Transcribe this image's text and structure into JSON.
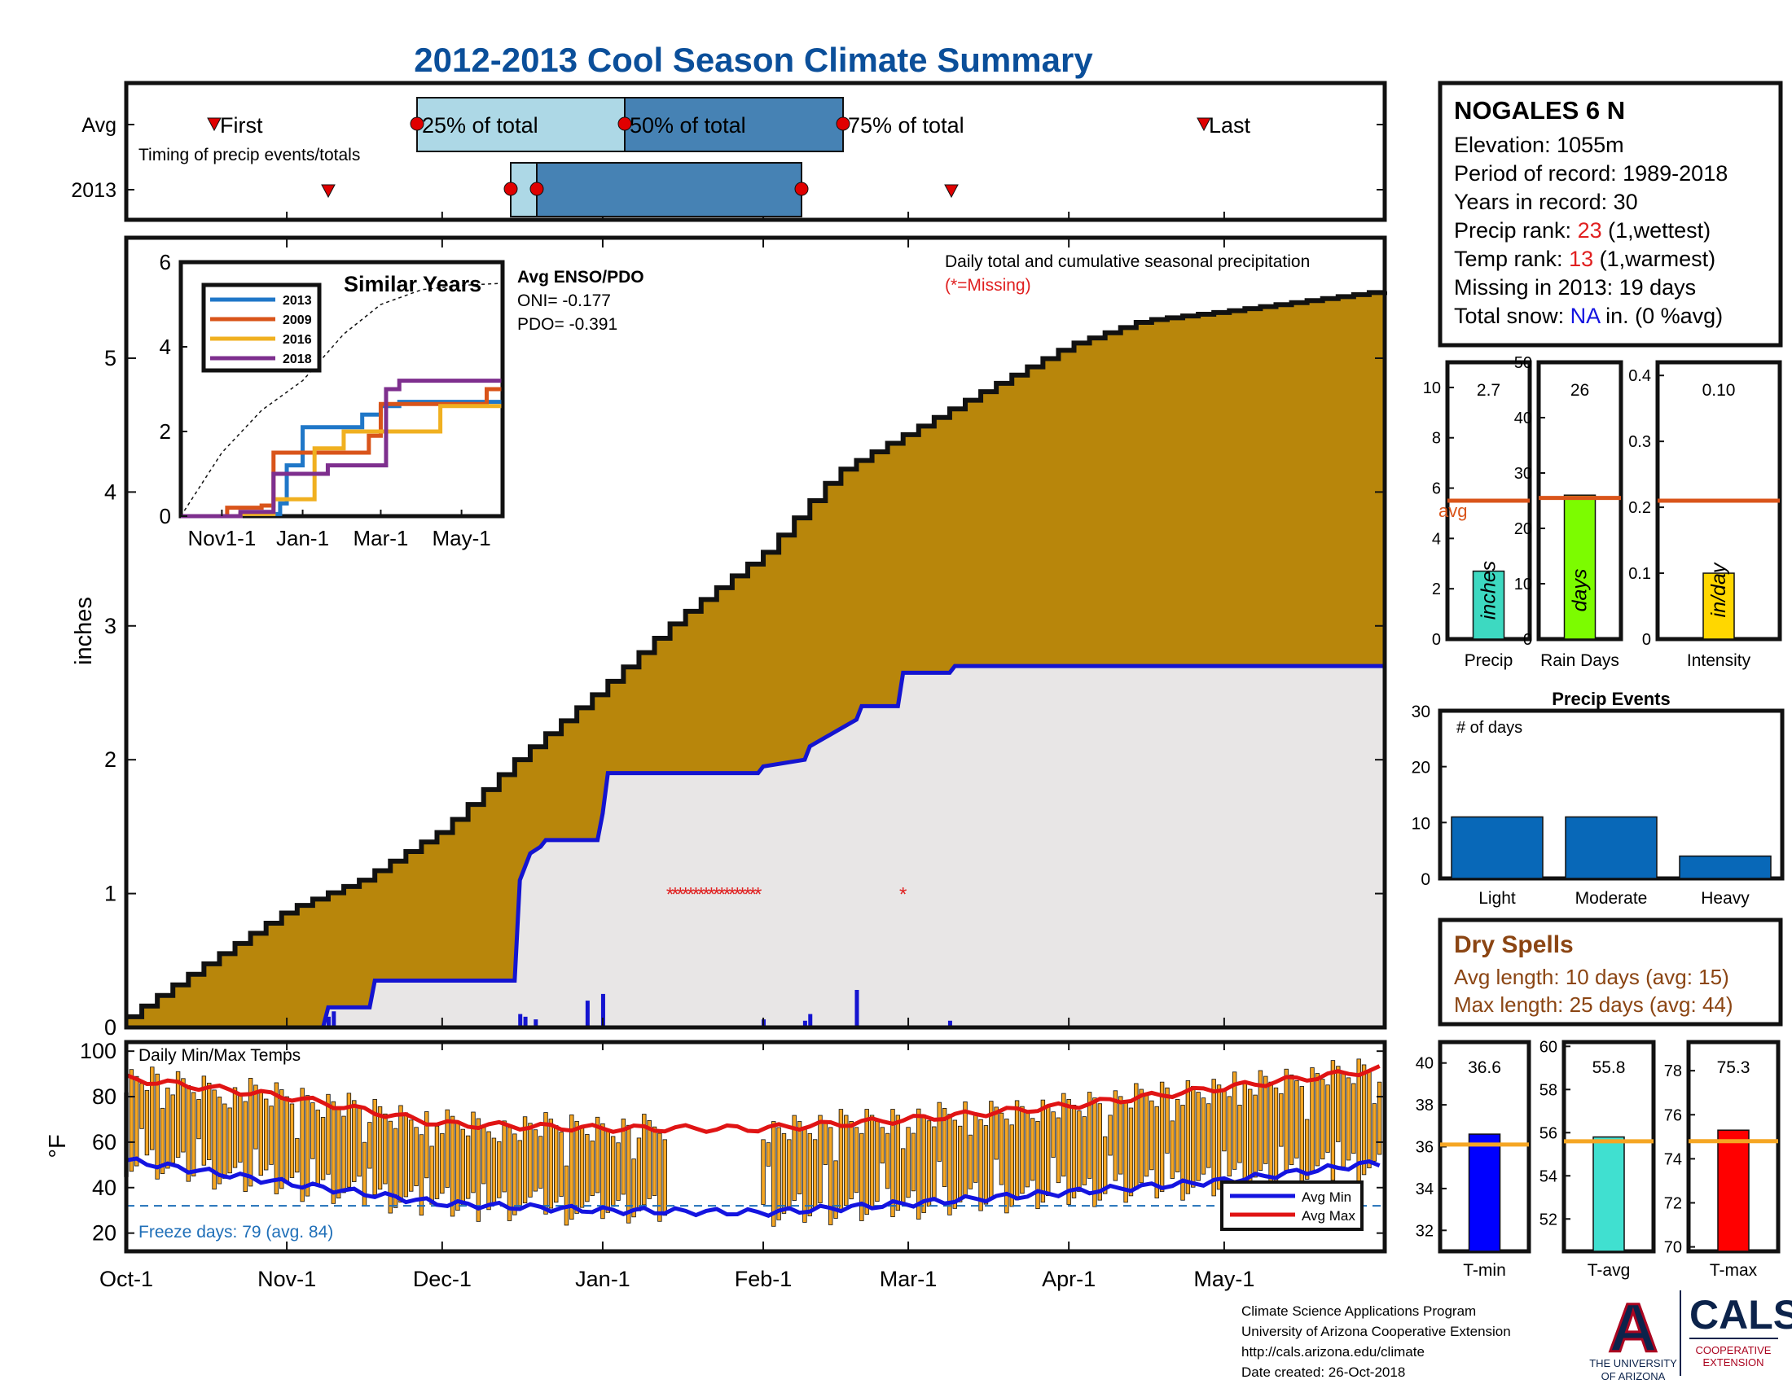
{
  "title": "2012-2013 Cool Season Climate Summary",
  "colors": {
    "title": "#0b4f9a",
    "cumulative_avg_fill": "#b8860b",
    "cumulative_2013_fill": "#e8e6e6",
    "line_2013": "#1414d0",
    "missing": "#e02020",
    "avg_line": "#d9541a",
    "dry_spell_text": "#8b4513",
    "temp_bar": "#f5a623",
    "avg_min_line": "#1414e0",
    "avg_max_line": "#e01414",
    "freeze_text": "#1f6fb8",
    "event_bar": "#0868b8"
  },
  "timing": {
    "row_labels": [
      "Avg",
      "2013"
    ],
    "note": "Timing of precip events/totals",
    "labels": {
      "first": "First",
      "q25": "25% of total",
      "q50": "50% of total",
      "q75": "75% of total",
      "last": "Last"
    },
    "avg_dates": {
      "first": "Oct-19",
      "q25": "Dec-04",
      "q50": "Jan-11",
      "q75": "Feb-19",
      "last": "May-10"
    },
    "y2013_dates": {
      "first": "Nov-09",
      "q25": "Dec-15",
      "q50": "Dec-20",
      "q75": "Feb-12",
      "last": "Mar-09"
    }
  },
  "station": {
    "name": "NOGALES 6 N",
    "elevation": "Elevation: 1055m",
    "period": "Period of record: 1989-2018",
    "years": "Years in record: 30",
    "precip_rank_prefix": "Precip rank: ",
    "precip_rank_value": "23",
    "precip_rank_suffix": " (1,wettest)",
    "temp_rank_prefix": "Temp rank: ",
    "temp_rank_value": "13",
    "temp_rank_suffix": " (1,warmest)",
    "missing": "Missing in 2013: 19 days",
    "snow_prefix": "Total snow: ",
    "snow_value": "NA",
    "snow_suffix": " in. (0 %avg)"
  },
  "main_plot": {
    "note": "Daily total and cumulative seasonal precipitation",
    "missing_note": "(*=Missing)",
    "ylabel": "inches",
    "yticks": [
      "0",
      "1",
      "2",
      "3",
      "4",
      "5"
    ],
    "x_ticks": [
      "Oct-1",
      "Nov-1",
      "Dec-1",
      "Jan-1",
      "Feb-1",
      "Mar-1",
      "Apr-1",
      "May-1"
    ]
  },
  "enso": {
    "heading": "Avg ENSO/PDO",
    "oni": "ONI= -0.177",
    "pdo": "PDO= -0.391"
  },
  "similar_years": {
    "title": "Similar Years",
    "yticks": [
      "0",
      "2",
      "4",
      "6"
    ],
    "xticks": [
      "Nov1-1",
      "Jan-1",
      "Mar-1",
      "May-1"
    ],
    "legend": [
      {
        "name": "2013",
        "color": "#1f77c8"
      },
      {
        "name": "2009",
        "color": "#d9541a"
      },
      {
        "name": "2016",
        "color": "#f0b020"
      },
      {
        "name": "2018",
        "color": "#7e2f8e"
      }
    ]
  },
  "bars": {
    "precip": {
      "value": "2.7",
      "unit": "inches",
      "label": "Precip",
      "avg_label": "avg",
      "color": "#3dd9c1",
      "yticks": [
        "0",
        "2",
        "4",
        "6",
        "8",
        "10"
      ]
    },
    "rain_days": {
      "value": "26",
      "unit": "days",
      "label": "Rain Days",
      "color": "#7cfc00",
      "yticks": [
        "0",
        "10",
        "20",
        "30",
        "40",
        "50"
      ]
    },
    "intensity": {
      "value": "0.10",
      "unit": "in/day",
      "label": "Intensity",
      "color": "#ffd700",
      "yticks": [
        "0",
        "0.1",
        "0.2",
        "0.3",
        "0.4"
      ]
    }
  },
  "precip_events": {
    "title": "Precip Events",
    "ylabel": "# of days",
    "yticks": [
      "0",
      "10",
      "20",
      "30"
    ],
    "categories": [
      "Light",
      "Moderate",
      "Heavy"
    ]
  },
  "dry_spells": {
    "title": "Dry Spells",
    "avg": "Avg length: 10 days (avg: 15)",
    "max": "Max length: 25 days (avg: 44)"
  },
  "temps": {
    "title": "Daily Min/Max Temps",
    "ylabel": "°F",
    "yticks": [
      "20",
      "40",
      "60",
      "80",
      "100"
    ],
    "freeze": "Freeze days: 79 (avg. 84)",
    "legend": [
      "Avg Min",
      "Avg Max"
    ]
  },
  "temp_bars": {
    "tmin": {
      "value": "36.6",
      "label": "T-min",
      "color": "#0000ff",
      "yticks": [
        "32",
        "34",
        "36",
        "38",
        "40"
      ]
    },
    "tavg": {
      "value": "55.8",
      "label": "T-avg",
      "color": "#40e0d0",
      "yticks": [
        "52",
        "54",
        "56",
        "58",
        "60"
      ]
    },
    "tmax": {
      "value": "75.3",
      "label": "T-max",
      "color": "#ff0000",
      "yticks": [
        "70",
        "72",
        "74",
        "76",
        "78"
      ]
    }
  },
  "footer": {
    "line1": "Climate Science Applications Program",
    "line2": "University of Arizona Cooperative Extension",
    "line3": "http://cals.arizona.edu/climate",
    "line4": " Date created: 26-Oct-2018"
  },
  "logos": {
    "ua_letter": "A",
    "ua_line1": "THE UNIVERSITY",
    "ua_line2": "OF ARIZONA",
    "cals": "CALS",
    "cals_line1": "COOPERATIVE",
    "cals_line2": "EXTENSION"
  },
  "chart_data": [
    {
      "type": "area",
      "id": "cumulative_precip",
      "title": "Daily total and cumulative seasonal precipitation",
      "ylabel": "inches",
      "xlabel": "",
      "x_range": [
        "Oct-1",
        "May-31"
      ],
      "ylim": [
        0,
        5.9
      ],
      "grid": false,
      "series": [
        {
          "name": "",
          "x": [
            "Oct-1",
            "Oct-15",
            "Nov-1",
            "Nov-15",
            "Dec-1",
            "Dec-15",
            "Jan-1",
            "Jan-15",
            "Feb-1",
            "Feb-15",
            "Mar-1",
            "Mar-15",
            "Apr-1",
            "Apr-15",
            "May-1",
            "May-15",
            "May-31"
          ],
          "values": [
            0.08,
            0.45,
            0.88,
            1.1,
            1.48,
            2.0,
            2.55,
            3.05,
            3.55,
            4.15,
            4.45,
            4.75,
            5.1,
            5.28,
            5.35,
            5.42,
            5.5
          ]
        },
        {
          "name": "",
          "x": [
            "Oct-1",
            "Nov-8",
            "Nov-9",
            "Nov-17",
            "Nov-18",
            "Dec-15",
            "Dec-16",
            "Dec-17",
            "Dec-18",
            "Dec-20",
            "Dec-21",
            "Dec-31",
            "Jan-1",
            "Jan-2",
            "Jan-31",
            "Feb-1",
            "Feb-9",
            "Feb-10",
            "Feb-19",
            "Feb-20",
            "Feb-27",
            "Feb-28",
            "Mar-9",
            "Mar-10",
            "May-31"
          ],
          "values": [
            0,
            0,
            0.15,
            0.15,
            0.35,
            0.35,
            1.1,
            1.2,
            1.3,
            1.35,
            1.4,
            1.4,
            1.6,
            1.9,
            1.9,
            1.95,
            2.0,
            2.1,
            2.3,
            2.4,
            2.4,
            2.65,
            2.65,
            2.7,
            2.7
          ]
        }
      ],
      "daily_precip": [
        {
          "x": "Nov-9",
          "value": 0.08
        },
        {
          "x": "Nov-10",
          "value": 0.12
        },
        {
          "x": "Dec-16",
          "value": 0.1
        },
        {
          "x": "Dec-17",
          "value": 0.08
        },
        {
          "x": "Dec-19",
          "value": 0.06
        },
        {
          "x": "Dec-29",
          "value": 0.2
        },
        {
          "x": "Jan-1",
          "value": 0.25
        },
        {
          "x": "Feb-1",
          "value": 0.06
        },
        {
          "x": "Feb-9",
          "value": 0.05
        },
        {
          "x": "Feb-10",
          "value": 0.1
        },
        {
          "x": "Feb-19",
          "value": 0.28
        },
        {
          "x": "Mar-9",
          "value": 0.05
        }
      ],
      "missing": {
        "y": 1.0,
        "x": [
          "Jan-14",
          "Jan-15",
          "Jan-16",
          "Jan-17",
          "Jan-18",
          "Jan-19",
          "Jan-20",
          "Jan-21",
          "Jan-22",
          "Jan-23",
          "Jan-24",
          "Jan-25",
          "Jan-26",
          "Jan-27",
          "Jan-28",
          "Jan-29",
          "Jan-30",
          "Jan-31",
          "Feb-28"
        ]
      }
    },
    {
      "type": "line",
      "id": "similar_years",
      "title": "Similar Years",
      "xlabel": "",
      "ylabel": "",
      "ylim": [
        0,
        6
      ],
      "series": [
        {
          "name": "2013",
          "x": [
            "Oct-1",
            "Nov-15",
            "Dec-15",
            "Dec-20",
            "Jan-1",
            "Feb-15",
            "Mar-1",
            "Mar-15",
            "Apr-1",
            "May-31"
          ],
          "values": [
            0,
            0.05,
            0.3,
            1.2,
            2.1,
            2.4,
            2.6,
            2.7,
            2.7,
            2.7
          ]
        },
        {
          "name": "2009",
          "x": [
            "Oct-1",
            "Nov-5",
            "Dec-1",
            "Dec-10",
            "Jan-10",
            "Feb-20",
            "Mar-1",
            "Mar-5",
            "Apr-10",
            "May-20",
            "May-31"
          ],
          "values": [
            0,
            0.2,
            0.25,
            1.5,
            1.5,
            1.9,
            2.65,
            2.65,
            2.65,
            3.0,
            3.0
          ]
        },
        {
          "name": "2016",
          "x": [
            "Oct-1",
            "Nov-15",
            "Dec-10",
            "Dec-20",
            "Jan-10",
            "Feb-1",
            "Mar-10",
            "Apr-15",
            "May-31"
          ],
          "values": [
            0,
            0.05,
            0.4,
            0.4,
            1.6,
            2.0,
            2.0,
            2.6,
            2.6
          ]
        },
        {
          "name": "2018",
          "x": [
            "Oct-1",
            "Nov-15",
            "Dec-1",
            "Dec-10",
            "Jan-20",
            "Feb-25",
            "Mar-5",
            "Mar-15",
            "May-31"
          ],
          "values": [
            0,
            0.1,
            0.1,
            1.0,
            1.2,
            1.2,
            3.0,
            3.2,
            3.2
          ]
        },
        {
          "name": "",
          "x": [
            "Oct-1",
            "Nov-1",
            "Dec-1",
            "Jan-1",
            "Feb-1",
            "Mar-1",
            "Apr-1",
            "May-1",
            "May-31"
          ],
          "values": [
            0,
            1.5,
            2.5,
            3.2,
            4.3,
            5.0,
            5.35,
            5.45,
            5.5
          ]
        }
      ]
    },
    {
      "type": "bar",
      "id": "precip_totals",
      "categories": [
        "Precip",
        "Rain Days",
        "Intensity"
      ],
      "values": [
        2.7,
        26,
        0.1
      ],
      "averages": [
        5.5,
        25.5,
        0.21
      ],
      "ylims": [
        [
          0,
          11
        ],
        [
          0,
          50
        ],
        [
          0,
          0.42
        ]
      ]
    },
    {
      "type": "bar",
      "id": "precip_events",
      "title": "Precip Events",
      "categories": [
        "Light",
        "Moderate",
        "Heavy"
      ],
      "values": [
        11,
        11,
        4
      ],
      "ylabel": "# of days",
      "ylim": [
        0,
        30
      ]
    },
    {
      "type": "bar",
      "id": "daily_temps",
      "title": "Daily Min/Max Temps",
      "ylabel": "°F",
      "ylim": [
        12,
        104
      ],
      "freeze_line": 32,
      "series": [
        {
          "name": "Avg Min",
          "x": [
            "Oct-1",
            "Nov-1",
            "Dec-1",
            "Jan-1",
            "Feb-1",
            "Mar-1",
            "Apr-1",
            "May-1",
            "May-31"
          ],
          "values": [
            52,
            42,
            33,
            30,
            29,
            33,
            38,
            43,
            51
          ]
        },
        {
          "name": "Avg Max",
          "x": [
            "Oct-1",
            "Nov-1",
            "Dec-1",
            "Jan-1",
            "Feb-1",
            "Mar-1",
            "Apr-1",
            "May-1",
            "May-31"
          ],
          "values": [
            88,
            80,
            68,
            66,
            66,
            70,
            76,
            84,
            92
          ]
        }
      ],
      "daily_range_note": "2013 daily min/max bars plotted across season"
    },
    {
      "type": "bar",
      "id": "temp_summary",
      "categories": [
        "T-min",
        "T-avg",
        "T-max"
      ],
      "values": [
        36.6,
        55.8,
        75.3
      ],
      "averages": [
        36.1,
        55.6,
        74.8
      ],
      "ylims": [
        [
          31,
          41
        ],
        [
          50.5,
          60.2
        ],
        [
          69.8,
          79.3
        ]
      ]
    }
  ]
}
